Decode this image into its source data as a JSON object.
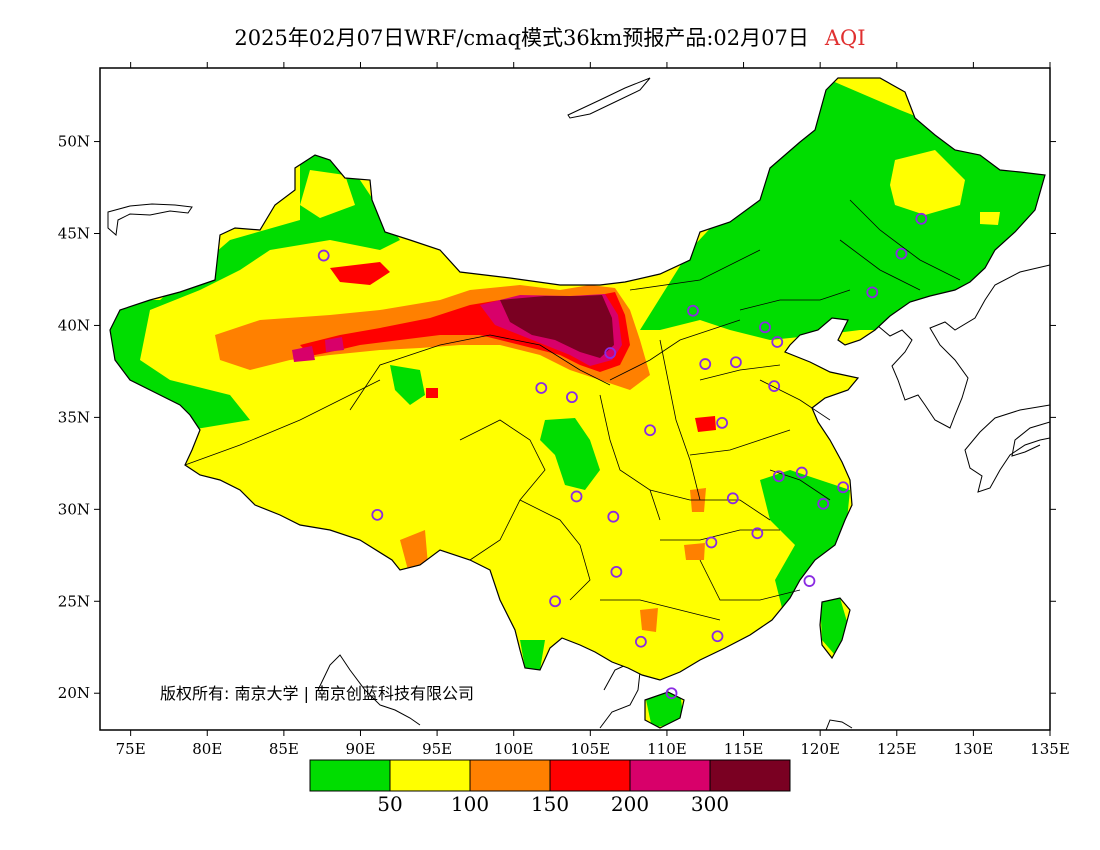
{
  "title": {
    "main": "2025年02月07日WRF/cmaq模式36km预报产品:02月07日",
    "variable": "AQI",
    "variable_color": "#e03030"
  },
  "copyright": "版权所有: 南京大学 | 南京创蓝科技有限公司",
  "map": {
    "x_ticks": [
      "75E",
      "80E",
      "85E",
      "90E",
      "95E",
      "100E",
      "105E",
      "110E",
      "115E",
      "120E",
      "125E",
      "130E",
      "135E"
    ],
    "y_ticks": [
      "50N",
      "45N",
      "40N",
      "35N",
      "30N",
      "25N",
      "20N"
    ]
  },
  "legend": {
    "colors": [
      "#00dd00",
      "#ffff00",
      "#ff8000",
      "#ff0000",
      "#d8006a",
      "#7a0022"
    ],
    "labels": [
      "50",
      "100",
      "150",
      "200",
      "300"
    ]
  },
  "stations": [
    [
      87.6,
      43.8
    ],
    [
      91.1,
      29.7
    ],
    [
      101.8,
      36.6
    ],
    [
      103.8,
      36.1
    ],
    [
      106.3,
      38.5
    ],
    [
      102.7,
      25.0
    ],
    [
      104.1,
      30.7
    ],
    [
      106.5,
      29.6
    ],
    [
      106.7,
      26.6
    ],
    [
      108.3,
      22.8
    ],
    [
      110.3,
      20.0
    ],
    [
      113.3,
      23.1
    ],
    [
      112.9,
      28.2
    ],
    [
      114.3,
      30.6
    ],
    [
      115.9,
      28.7
    ],
    [
      113.6,
      34.7
    ],
    [
      112.5,
      37.9
    ],
    [
      114.5,
      38.0
    ],
    [
      117.0,
      36.7
    ],
    [
      116.4,
      39.9
    ],
    [
      117.2,
      39.1
    ],
    [
      111.7,
      40.8
    ],
    [
      123.4,
      41.8
    ],
    [
      125.3,
      43.9
    ],
    [
      126.6,
      45.8
    ],
    [
      117.3,
      31.8
    ],
    [
      118.8,
      32.0
    ],
    [
      120.2,
      30.3
    ],
    [
      121.5,
      31.2
    ],
    [
      119.3,
      26.1
    ],
    [
      108.9,
      34.3
    ]
  ]
}
